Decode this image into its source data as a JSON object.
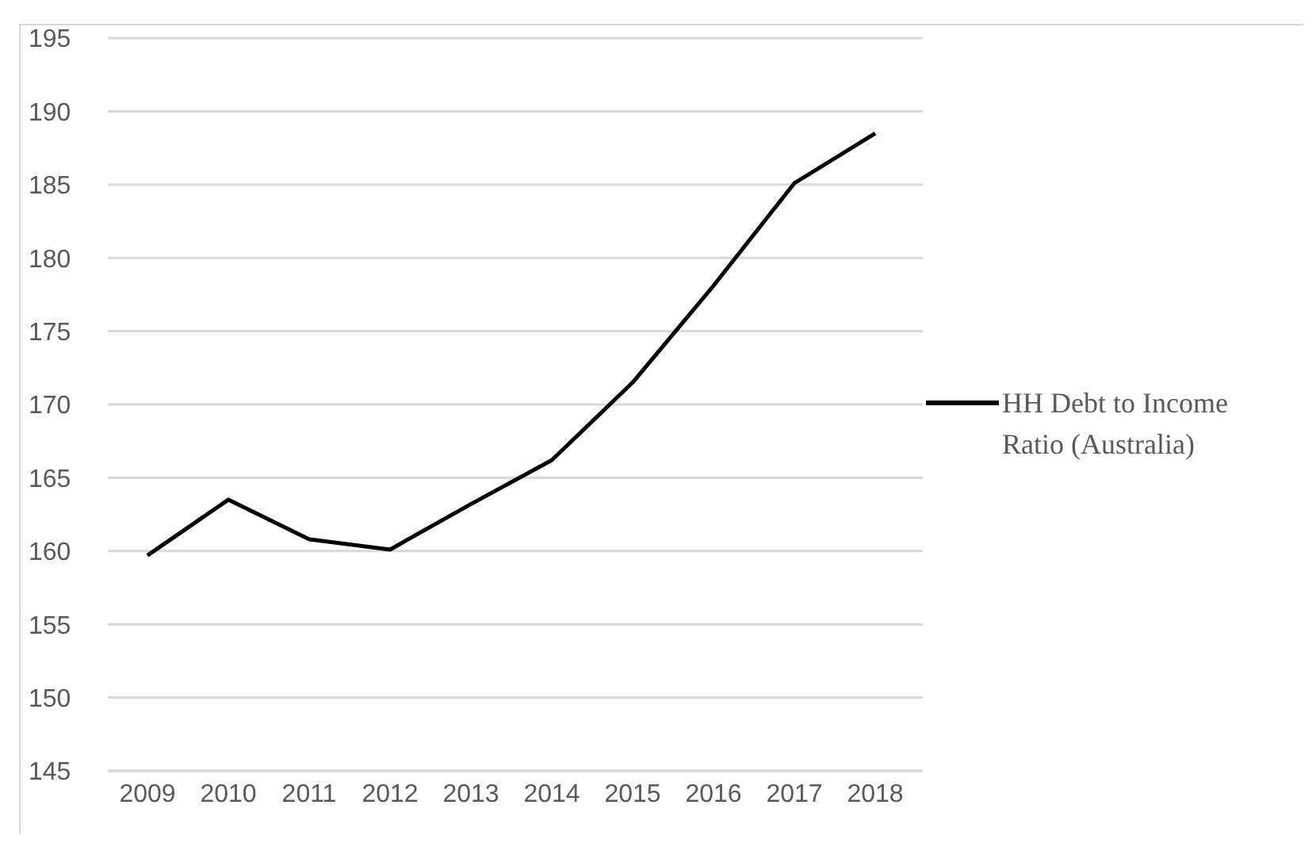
{
  "chart_data": {
    "type": "line",
    "categories": [
      "2009",
      "2010",
      "2011",
      "2012",
      "2013",
      "2014",
      "2015",
      "2016",
      "2017",
      "2018"
    ],
    "series": [
      {
        "name": "HH Debt to Income Ratio (Australia)",
        "color": "#000000",
        "values": [
          159.7,
          163.5,
          160.8,
          160.1,
          163.2,
          166.2,
          171.5,
          178.1,
          185.1,
          188.5
        ]
      }
    ],
    "ylim": [
      145,
      195
    ],
    "yticks": [
      145,
      150,
      155,
      160,
      165,
      170,
      175,
      180,
      185,
      190,
      195
    ],
    "grid": "y",
    "legend": "right"
  }
}
